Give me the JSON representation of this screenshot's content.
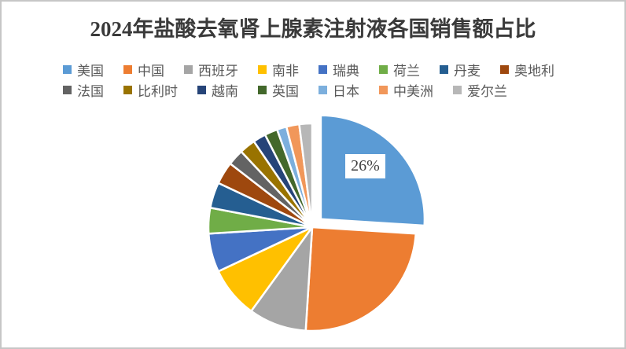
{
  "title": "2024年盐酸去氧肾上腺素注射液各国销售额占比",
  "chart_data": {
    "type": "pie",
    "title": "2024年盐酸去氧肾上腺素注射液各国销售额占比",
    "legend_position": "top",
    "start_angle_deg": 0,
    "direction": "clockwise",
    "exploded_slice": "美国",
    "data_label": {
      "slice": "美国",
      "text": "26%"
    },
    "legend_rows": [
      8,
      7
    ],
    "series": [
      {
        "name": "美国",
        "value": 26,
        "color": "#5B9BD5"
      },
      {
        "name": "中国",
        "value": 25,
        "color": "#ED7D31"
      },
      {
        "name": "西班牙",
        "value": 9,
        "color": "#A5A5A5"
      },
      {
        "name": "南非",
        "value": 8,
        "color": "#FFC000"
      },
      {
        "name": "瑞典",
        "value": 6,
        "color": "#4472C4"
      },
      {
        "name": "荷兰",
        "value": 4,
        "color": "#70AD47"
      },
      {
        "name": "丹麦",
        "value": 4,
        "color": "#255E91"
      },
      {
        "name": "奥地利",
        "value": 3.5,
        "color": "#9E480E"
      },
      {
        "name": "法国",
        "value": 2.5,
        "color": "#636363"
      },
      {
        "name": "比利时",
        "value": 2.5,
        "color": "#997300"
      },
      {
        "name": "越南",
        "value": 2,
        "color": "#264478"
      },
      {
        "name": "英国",
        "value": 2,
        "color": "#43682B"
      },
      {
        "name": "日本",
        "value": 1.5,
        "color": "#7CAFDD"
      },
      {
        "name": "中美洲",
        "value": 2,
        "color": "#F1975A"
      },
      {
        "name": "爱尔兰",
        "value": 2,
        "color": "#B7B7B7"
      }
    ]
  }
}
